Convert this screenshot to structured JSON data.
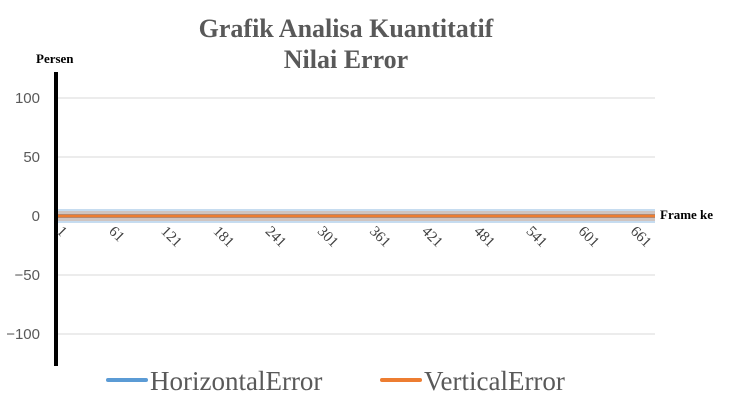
{
  "chart_data": {
    "type": "line",
    "title_lines": [
      "Grafik Analisa Kuantitatif",
      "Nilai Error"
    ],
    "xlabel": "Frame ke",
    "ylabel": "Persen",
    "ylim": [
      -120,
      120
    ],
    "yticks": [
      100,
      50,
      0,
      -50,
      -100
    ],
    "xlim": [
      1,
      690
    ],
    "xticks": [
      1,
      61,
      121,
      181,
      241,
      301,
      361,
      421,
      481,
      541,
      601,
      661
    ],
    "grid": true,
    "legend_position": "bottom",
    "series": [
      {
        "name": "HorizontalError",
        "color": "#5b9bd5",
        "x": [
          1,
          690
        ],
        "y": [
          0,
          0
        ]
      },
      {
        "name": "VerticalError",
        "color": "#ed7d31",
        "x": [
          1,
          690
        ],
        "y": [
          0,
          0
        ]
      }
    ]
  }
}
